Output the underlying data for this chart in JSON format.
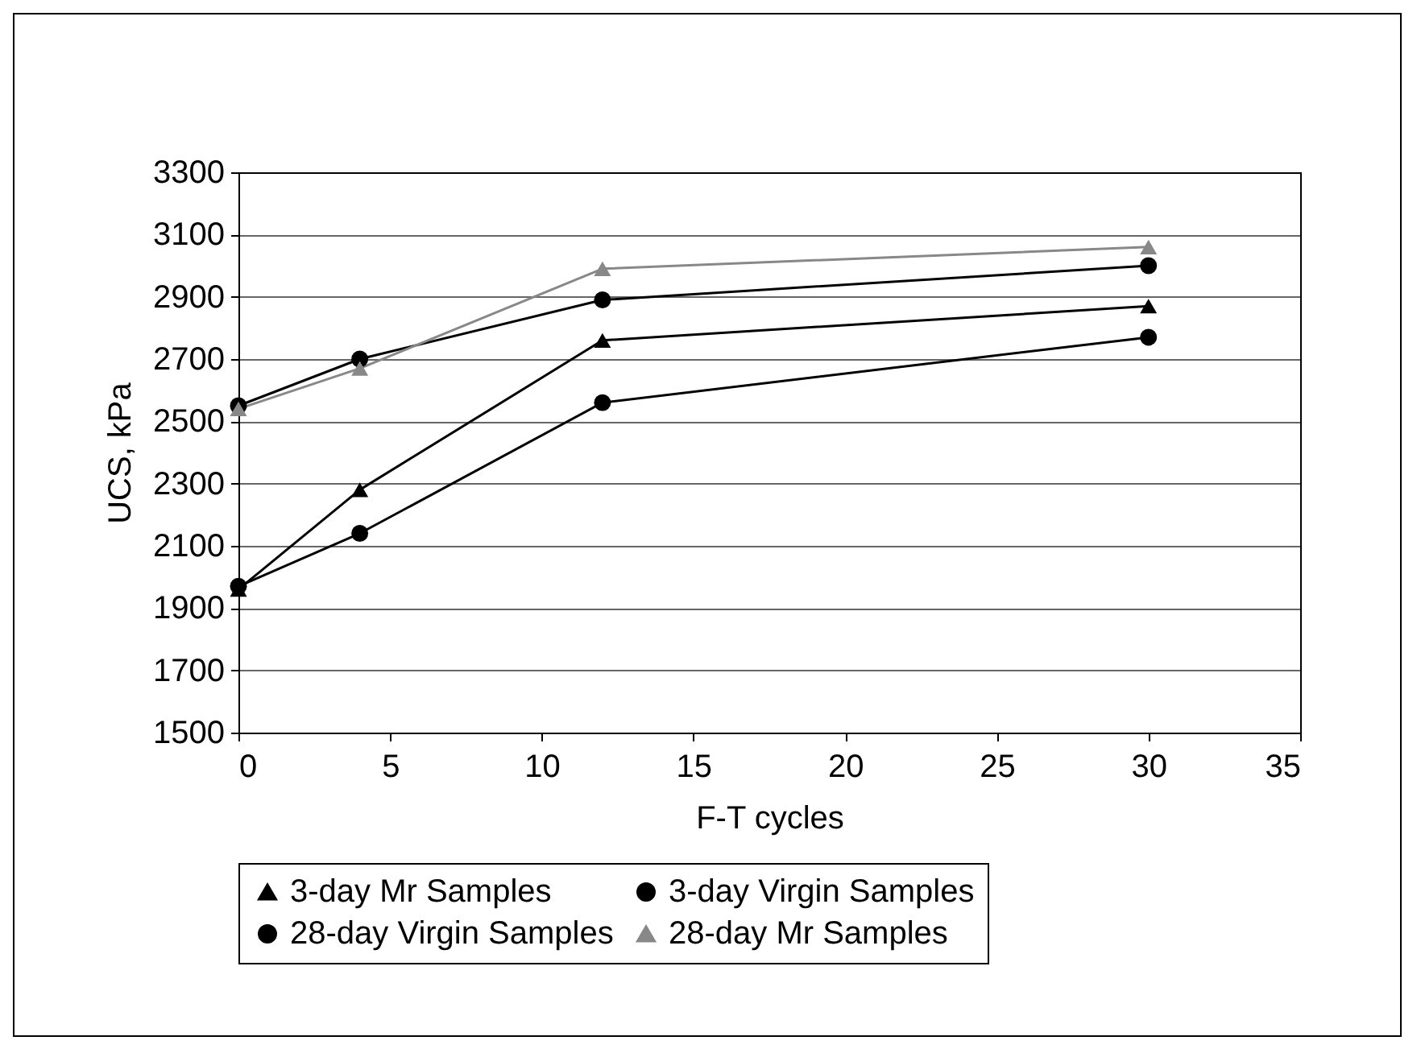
{
  "chart_data": {
    "type": "line",
    "xlabel": "F-T cycles",
    "ylabel": "UCS, kPa",
    "x": [
      0,
      4,
      12,
      30
    ],
    "series": [
      {
        "name": "3-day Mr Samples",
        "color": "#000000",
        "marker": "triangle",
        "values": [
          1960,
          2280,
          2760,
          2870
        ]
      },
      {
        "name": "3-day Virgin Samples",
        "color": "#000000",
        "marker": "circle",
        "values": [
          1970,
          2140,
          2560,
          2770
        ]
      },
      {
        "name": "28-day Virgin Samples",
        "color": "#000000",
        "marker": "circle",
        "values": [
          2550,
          2700,
          2890,
          3000
        ]
      },
      {
        "name": "28-day Mr Samples",
        "color": "#888888",
        "marker": "triangle",
        "values": [
          2540,
          2670,
          2990,
          3060
        ]
      }
    ],
    "xlim": [
      0,
      35
    ],
    "xticks": [
      0,
      5,
      10,
      15,
      20,
      25,
      30,
      35
    ],
    "ylim": [
      1500,
      3300
    ],
    "yticks": [
      1500,
      1700,
      1900,
      2100,
      2300,
      2500,
      2700,
      2900,
      3100,
      3300
    ],
    "grid": "y",
    "legend": "bottom",
    "line_style": "solid"
  }
}
